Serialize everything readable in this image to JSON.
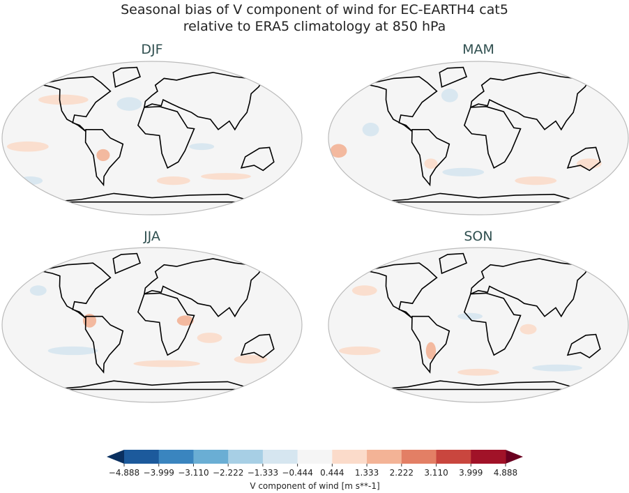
{
  "title_line1": "Seasonal bias of V component of wind for EC-EARTH4 cat5",
  "title_line2": "relative to ERA5 climatology at 850 hPa",
  "panels": [
    {
      "label": "DJF"
    },
    {
      "label": "MAM"
    },
    {
      "label": "JJA"
    },
    {
      "label": "SON"
    }
  ],
  "colorbar": {
    "label": "V component of wind [m s**-1]",
    "ticks": [
      "−4.888",
      "−3.999",
      "−3.110",
      "−2.222",
      "−1.333",
      "−0.444",
      "0.444",
      "1.333",
      "2.222",
      "3.110",
      "3.999",
      "4.888"
    ],
    "colors": [
      "#1c5a9c",
      "#3a85bf",
      "#6aaed4",
      "#a7cfe5",
      "#d6e6f0",
      "#f5f5f5",
      "#fbdbca",
      "#f3b396",
      "#e37f65",
      "#c9463e",
      "#a11228"
    ],
    "extend_low_color": "#0a3060",
    "extend_high_color": "#6a0020"
  }
}
